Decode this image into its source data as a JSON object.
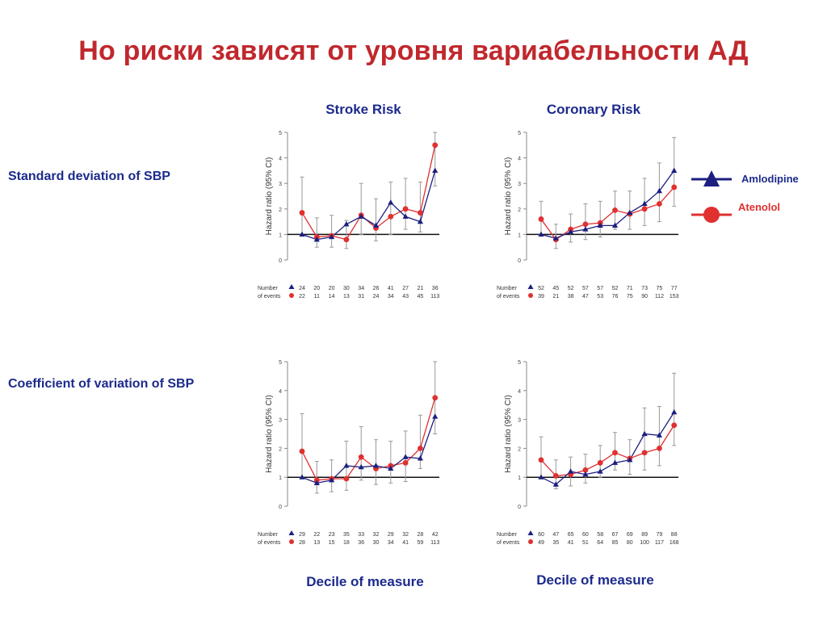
{
  "title": "Но риски зависят от уровня вариабельности АД",
  "columns": {
    "left": "Stroke Risk",
    "right": "Coronary Risk"
  },
  "rows": {
    "top": "Standard deviation of SBP",
    "bottom": "Coefficient of variation of SBP"
  },
  "xlabel": "Decile of measure",
  "legend": [
    {
      "name": "Amlodipine",
      "color": "#1c1f80",
      "marker": "triangle"
    },
    {
      "name": "Atenolol",
      "color": "#e03030",
      "marker": "circle"
    }
  ],
  "colors": {
    "title": "#c0282d",
    "heading": "#1c2a8c",
    "amlodipine": "#1c1f80",
    "atenolol": "#e03030",
    "ci": "#999999"
  },
  "events_label": [
    "Number",
    "of events"
  ],
  "chart_data": [
    {
      "type": "line",
      "row": "Standard deviation of SBP",
      "column": "Stroke Risk",
      "ylabel": "Hazard ratio (95% CI)",
      "ylim": [
        0,
        5
      ],
      "yticks": [
        0,
        1,
        2,
        3,
        4,
        5
      ],
      "reference_line": 1,
      "x": [
        1,
        2,
        3,
        4,
        5,
        6,
        7,
        8,
        9,
        10
      ],
      "series": [
        {
          "name": "Amlodipine",
          "values": [
            1.0,
            0.8,
            0.9,
            1.4,
            1.7,
            1.35,
            2.25,
            1.7,
            1.5,
            3.5
          ],
          "events": [
            24,
            20,
            20,
            30,
            34,
            26,
            41,
            27,
            21,
            36
          ]
        },
        {
          "name": "Atenolol",
          "values": [
            1.85,
            0.9,
            0.95,
            0.8,
            1.75,
            1.25,
            1.7,
            2.0,
            1.85,
            4.5
          ],
          "events": [
            22,
            11,
            14,
            13,
            31,
            24,
            34,
            43,
            45,
            113
          ],
          "ci_low": [
            1.0,
            0.5,
            0.5,
            0.45,
            1.0,
            0.75,
            1.0,
            1.2,
            1.1,
            2.9
          ],
          "ci_high": [
            3.25,
            1.65,
            1.75,
            1.55,
            3.0,
            2.4,
            3.05,
            3.2,
            3.05,
            5.0
          ]
        }
      ]
    },
    {
      "type": "line",
      "row": "Standard deviation of SBP",
      "column": "Coronary Risk",
      "ylabel": "Hazard ratio (95% CI)",
      "ylim": [
        0,
        5
      ],
      "yticks": [
        0,
        1,
        2,
        3,
        4,
        5
      ],
      "reference_line": 1,
      "x": [
        1,
        2,
        3,
        4,
        5,
        6,
        7,
        8,
        9,
        10
      ],
      "series": [
        {
          "name": "Amlodipine",
          "values": [
            1.0,
            0.85,
            1.1,
            1.2,
            1.35,
            1.35,
            1.85,
            2.2,
            2.7,
            3.5
          ],
          "events": [
            52,
            45,
            52,
            57,
            57,
            52,
            71,
            73,
            75,
            77
          ]
        },
        {
          "name": "Atenolol",
          "values": [
            1.6,
            0.8,
            1.2,
            1.4,
            1.45,
            1.95,
            1.8,
            2.0,
            2.2,
            2.85
          ],
          "events": [
            39,
            21,
            38,
            47,
            53,
            76,
            75,
            90,
            112,
            153
          ],
          "ci_low": [
            1.0,
            0.45,
            0.7,
            0.8,
            0.9,
            1.2,
            1.2,
            1.35,
            1.5,
            2.1
          ],
          "ci_high": [
            2.3,
            1.4,
            1.8,
            2.2,
            2.3,
            2.7,
            2.7,
            3.2,
            3.8,
            4.8
          ]
        }
      ]
    },
    {
      "type": "line",
      "row": "Coefficient of variation of SBP",
      "column": "Stroke Risk",
      "ylabel": "Hazard ratio (95% CI)",
      "ylim": [
        0,
        5
      ],
      "yticks": [
        0,
        1,
        2,
        3,
        4,
        5
      ],
      "reference_line": 1,
      "x": [
        1,
        2,
        3,
        4,
        5,
        6,
        7,
        8,
        9,
        10
      ],
      "series": [
        {
          "name": "Amlodipine",
          "values": [
            1.0,
            0.8,
            0.9,
            1.4,
            1.35,
            1.4,
            1.3,
            1.7,
            1.65,
            3.1
          ],
          "events": [
            29,
            22,
            23,
            35,
            33,
            32,
            29,
            32,
            28,
            42
          ]
        },
        {
          "name": "Atenolol",
          "values": [
            1.9,
            0.9,
            0.95,
            0.95,
            1.7,
            1.3,
            1.4,
            1.5,
            2.0,
            3.75
          ],
          "events": [
            28,
            13,
            15,
            18,
            36,
            30,
            34,
            41,
            59,
            113
          ],
          "ci_low": [
            1.0,
            0.45,
            0.5,
            0.55,
            0.9,
            0.75,
            0.8,
            0.85,
            1.3,
            2.5
          ],
          "ci_high": [
            3.2,
            1.55,
            1.6,
            2.25,
            2.75,
            2.3,
            2.25,
            2.6,
            3.15,
            5.0
          ]
        }
      ]
    },
    {
      "type": "line",
      "row": "Coefficient of variation of SBP",
      "column": "Coronary Risk",
      "ylabel": "Hazard ratio (95% CI)",
      "ylim": [
        0,
        5
      ],
      "yticks": [
        0,
        1,
        2,
        3,
        4,
        5
      ],
      "reference_line": 1,
      "x": [
        1,
        2,
        3,
        4,
        5,
        6,
        7,
        8,
        9,
        10
      ],
      "series": [
        {
          "name": "Amlodipine",
          "values": [
            1.0,
            0.75,
            1.2,
            1.1,
            1.2,
            1.5,
            1.6,
            2.5,
            2.45,
            3.25
          ],
          "events": [
            60,
            47,
            65,
            60,
            58,
            67,
            69,
            89,
            79,
            88
          ]
        },
        {
          "name": "Atenolol",
          "values": [
            1.6,
            1.05,
            1.1,
            1.25,
            1.5,
            1.85,
            1.65,
            1.85,
            2.0,
            2.8
          ],
          "events": [
            49,
            35,
            41,
            51,
            64,
            85,
            80,
            100,
            117,
            168
          ],
          "ci_low": [
            1.0,
            0.6,
            0.7,
            0.8,
            1.0,
            1.25,
            1.1,
            1.25,
            1.4,
            2.1
          ],
          "ci_high": [
            2.4,
            1.6,
            1.7,
            1.8,
            2.1,
            2.55,
            2.3,
            3.4,
            3.45,
            4.6
          ]
        }
      ]
    }
  ]
}
